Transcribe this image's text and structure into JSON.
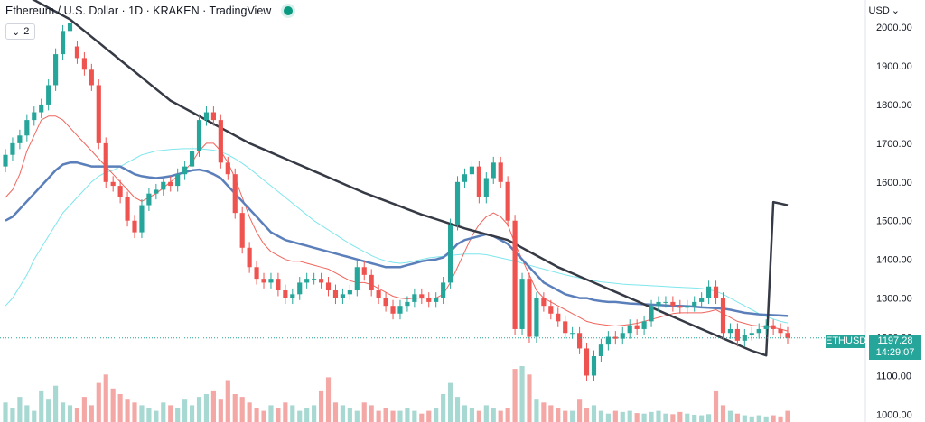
{
  "header": {
    "title": "Ethereum / U.S. Dollar · 1D · KRAKEN · TradingView",
    "collapse_count": "2",
    "currency": "USD"
  },
  "price_tag": {
    "symbol": "ETHUSD",
    "price": "1197.28",
    "countdown": "14:29:07"
  },
  "colors": {
    "up": "#26a69a",
    "down": "#ef5350",
    "vol_up": "#a7d8d2",
    "vol_down": "#f4a8a6",
    "ma_short": "#f0665e",
    "ma_mid": "#5b7fba",
    "ma_light": "#7fe6ec",
    "ma_long": "#363a45"
  },
  "chart_data": {
    "type": "candlestick",
    "symbol": "ETHUSD",
    "interval": "1D",
    "yaxis": {
      "ticks": [
        1000,
        1100,
        1200,
        1300,
        1400,
        1500,
        1600,
        1700,
        1800,
        1900,
        2000
      ],
      "ylim": [
        980,
        2070
      ]
    },
    "candles_open": [
      1640,
      1670,
      1700,
      1720,
      1760,
      1780,
      1800,
      1850,
      1930,
      1990,
      1950,
      1920,
      1890,
      1850,
      1700,
      1600,
      1590,
      1560,
      1500,
      1470,
      1540,
      1570,
      1580,
      1600,
      1590,
      1620,
      1640,
      1680,
      1760,
      1780,
      1760,
      1650,
      1620,
      1520,
      1430,
      1380,
      1350,
      1340,
      1350,
      1320,
      1300,
      1310,
      1340,
      1350,
      1350,
      1340,
      1320,
      1300,
      1310,
      1320,
      1380,
      1360,
      1320,
      1300,
      1280,
      1260,
      1280,
      1290,
      1310,
      1300,
      1290,
      1300,
      1340,
      1490,
      1600,
      1620,
      1640,
      1560,
      1610,
      1650,
      1600,
      1500,
      1220,
      1350,
      1200,
      1300,
      1280,
      1260,
      1240,
      1210,
      1210,
      1170,
      1100,
      1150,
      1180,
      1200,
      1195,
      1210,
      1230,
      1220,
      1240,
      1280,
      1290,
      1290,
      1280,
      1275,
      1280,
      1290,
      1300,
      1330,
      1300,
      1210,
      1220,
      1190,
      1205,
      1210,
      1220,
      1230,
      1220,
      1210
    ],
    "candles_close": [
      1670,
      1700,
      1720,
      1760,
      1780,
      1800,
      1850,
      1930,
      1990,
      2010,
      1920,
      1890,
      1850,
      1700,
      1600,
      1590,
      1560,
      1500,
      1470,
      1540,
      1570,
      1580,
      1600,
      1590,
      1620,
      1640,
      1680,
      1760,
      1780,
      1760,
      1650,
      1620,
      1520,
      1430,
      1380,
      1350,
      1340,
      1350,
      1320,
      1300,
      1310,
      1340,
      1350,
      1350,
      1340,
      1320,
      1300,
      1310,
      1320,
      1380,
      1360,
      1320,
      1300,
      1280,
      1260,
      1280,
      1290,
      1310,
      1300,
      1290,
      1300,
      1340,
      1490,
      1600,
      1620,
      1640,
      1560,
      1610,
      1650,
      1600,
      1500,
      1220,
      1350,
      1200,
      1300,
      1280,
      1260,
      1240,
      1210,
      1210,
      1170,
      1100,
      1150,
      1180,
      1200,
      1195,
      1210,
      1230,
      1220,
      1240,
      1280,
      1290,
      1290,
      1280,
      1275,
      1280,
      1290,
      1300,
      1330,
      1300,
      1210,
      1220,
      1190,
      1205,
      1210,
      1220,
      1230,
      1220,
      1210,
      1197
    ],
    "ma_long": [
      2100,
      2095,
      2090,
      2080,
      2070,
      2060,
      2050,
      2040,
      2030,
      2020,
      2005,
      1990,
      1975,
      1960,
      1945,
      1930,
      1915,
      1900,
      1885,
      1870,
      1855,
      1840,
      1825,
      1810,
      1800,
      1790,
      1780,
      1770,
      1760,
      1750,
      1740,
      1730,
      1720,
      1710,
      1700,
      1692,
      1684,
      1676,
      1668,
      1660,
      1652,
      1644,
      1636,
      1628,
      1620,
      1612,
      1604,
      1596,
      1588,
      1580,
      1572,
      1565,
      1558,
      1551,
      1544,
      1537,
      1530,
      1523,
      1516,
      1510,
      1504,
      1498,
      1492,
      1486,
      1480,
      1475,
      1470,
      1465,
      1460,
      1455,
      1450,
      1440,
      1430,
      1420,
      1410,
      1400,
      1390,
      1380,
      1372,
      1364,
      1356,
      1348,
      1340,
      1332,
      1324,
      1316,
      1308,
      1300,
      1292,
      1284,
      1276,
      1268,
      1260,
      1252,
      1244,
      1236,
      1228,
      1220,
      1212,
      1204,
      1196,
      1188,
      1180,
      1172,
      1164,
      1158,
      1152,
      1546,
      1542,
      1540
    ],
    "ma_mid": [
      1500,
      1510,
      1530,
      1550,
      1570,
      1590,
      1610,
      1630,
      1645,
      1650,
      1650,
      1645,
      1640,
      1640,
      1640,
      1640,
      1640,
      1630,
      1620,
      1615,
      1612,
      1610,
      1612,
      1615,
      1620,
      1625,
      1630,
      1632,
      1628,
      1620,
      1610,
      1590,
      1570,
      1550,
      1530,
      1510,
      1490,
      1470,
      1460,
      1450,
      1445,
      1440,
      1435,
      1430,
      1425,
      1420,
      1415,
      1410,
      1405,
      1400,
      1395,
      1390,
      1385,
      1380,
      1380,
      1380,
      1385,
      1390,
      1395,
      1398,
      1400,
      1405,
      1420,
      1440,
      1450,
      1455,
      1460,
      1465,
      1460,
      1450,
      1440,
      1420,
      1400,
      1380,
      1360,
      1340,
      1330,
      1320,
      1310,
      1305,
      1300,
      1300,
      1295,
      1292,
      1290,
      1290,
      1288,
      1286,
      1285,
      1284,
      1283,
      1282,
      1281,
      1280,
      1280,
      1279,
      1278,
      1276,
      1275,
      1274,
      1273,
      1270,
      1266,
      1262,
      1260,
      1258,
      1257,
      1256,
      1255,
      1254
    ],
    "ma_short": [
      1560,
      1580,
      1620,
      1680,
      1720,
      1760,
      1770,
      1770,
      1760,
      1740,
      1720,
      1700,
      1680,
      1660,
      1640,
      1620,
      1600,
      1580,
      1560,
      1550,
      1560,
      1570,
      1585,
      1600,
      1615,
      1630,
      1650,
      1680,
      1700,
      1700,
      1680,
      1650,
      1610,
      1560,
      1510,
      1470,
      1440,
      1420,
      1410,
      1400,
      1395,
      1395,
      1390,
      1385,
      1380,
      1375,
      1365,
      1355,
      1345,
      1340,
      1340,
      1335,
      1325,
      1315,
      1305,
      1300,
      1298,
      1300,
      1300,
      1300,
      1300,
      1310,
      1340,
      1380,
      1420,
      1460,
      1490,
      1510,
      1520,
      1510,
      1490,
      1440,
      1400,
      1360,
      1320,
      1300,
      1290,
      1280,
      1270,
      1260,
      1250,
      1240,
      1235,
      1232,
      1230,
      1228,
      1230,
      1232,
      1235,
      1240,
      1245,
      1250,
      1255,
      1260,
      1262,
      1262,
      1262,
      1262,
      1265,
      1270,
      1260,
      1250,
      1240,
      1235,
      1230,
      1228,
      1226,
      1224,
      1220,
      1215
    ],
    "ma_light": [
      1280,
      1300,
      1330,
      1360,
      1400,
      1430,
      1460,
      1490,
      1520,
      1540,
      1560,
      1580,
      1600,
      1615,
      1625,
      1630,
      1640,
      1650,
      1660,
      1670,
      1675,
      1680,
      1682,
      1684,
      1685,
      1686,
      1686,
      1686,
      1684,
      1682,
      1678,
      1670,
      1660,
      1648,
      1635,
      1620,
      1605,
      1590,
      1575,
      1560,
      1545,
      1530,
      1515,
      1500,
      1488,
      1476,
      1464,
      1452,
      1440,
      1430,
      1420,
      1410,
      1402,
      1396,
      1392,
      1390,
      1392,
      1396,
      1400,
      1404,
      1406,
      1408,
      1410,
      1412,
      1414,
      1414,
      1414,
      1412,
      1408,
      1404,
      1400,
      1396,
      1390,
      1385,
      1380,
      1375,
      1370,
      1365,
      1360,
      1356,
      1352,
      1348,
      1345,
      1342,
      1340,
      1338,
      1336,
      1335,
      1334,
      1333,
      1332,
      1331,
      1330,
      1329,
      1328,
      1327,
      1326,
      1325,
      1322,
      1318,
      1310,
      1300,
      1290,
      1280,
      1270,
      1260,
      1252,
      1246,
      1240,
      1236
    ],
    "volume": [
      0.35,
      0.25,
      0.45,
      0.3,
      0.2,
      0.55,
      0.4,
      0.65,
      0.35,
      0.3,
      0.25,
      0.45,
      0.3,
      0.7,
      0.85,
      0.6,
      0.5,
      0.4,
      0.35,
      0.3,
      0.25,
      0.2,
      0.35,
      0.3,
      0.25,
      0.4,
      0.3,
      0.45,
      0.5,
      0.55,
      0.4,
      0.75,
      0.5,
      0.45,
      0.35,
      0.25,
      0.2,
      0.3,
      0.25,
      0.35,
      0.3,
      0.2,
      0.25,
      0.3,
      0.55,
      0.8,
      0.35,
      0.3,
      0.25,
      0.2,
      0.35,
      0.3,
      0.2,
      0.25,
      0.2,
      0.2,
      0.25,
      0.2,
      0.15,
      0.2,
      0.25,
      0.5,
      0.7,
      0.45,
      0.3,
      0.25,
      0.2,
      0.3,
      0.25,
      0.2,
      0.25,
      0.95,
      1.0,
      0.85,
      0.4,
      0.35,
      0.3,
      0.25,
      0.2,
      0.2,
      0.4,
      0.25,
      0.3,
      0.2,
      0.15,
      0.2,
      0.18,
      0.2,
      0.16,
      0.15,
      0.18,
      0.2,
      0.15,
      0.14,
      0.18,
      0.15,
      0.13,
      0.12,
      0.14,
      0.55,
      0.3,
      0.2,
      0.15,
      0.12,
      0.1,
      0.12,
      0.1,
      0.12,
      0.1,
      0.2
    ],
    "last_price": 1197.28
  }
}
